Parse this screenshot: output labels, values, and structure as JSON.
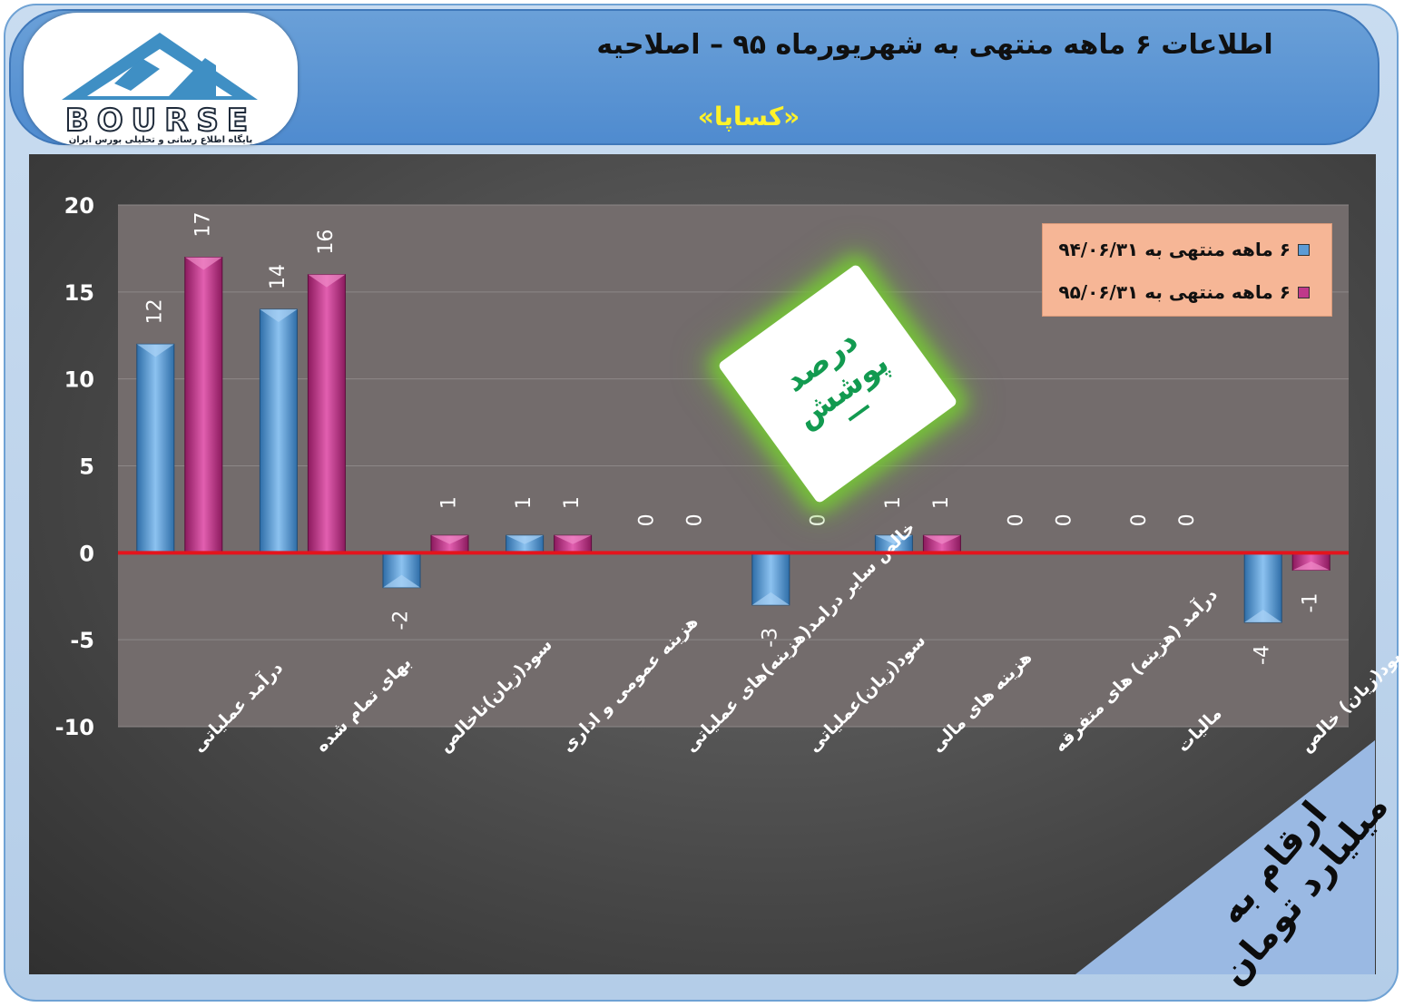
{
  "header": {
    "title": "اطلاعات ۶ ماهه منتهی به شهریورماه ۹۵ – اصلاحیه",
    "subtitle": "«کساپا»"
  },
  "logo": {
    "text": "BOURSE",
    "mark": "24",
    "sub": "پایگاه اطلاع رسانی و تحلیلی بورس ایران"
  },
  "coverage": {
    "label": "درصد پوشش",
    "value": "—"
  },
  "unit_note": "ارقام به میلیارد تومان",
  "colors": {
    "series1": "#5b9bd5",
    "series2": "#c0398a",
    "zero_line": "#e3141c"
  },
  "chart_data": {
    "type": "bar",
    "categories": [
      "درآمد عملیاتی",
      "بهای تمام شده",
      "سود(زیان)ناخالص",
      "هزینه عمومی و اداری",
      "خالص سایر درامد(هزینه)های عملیاتی",
      "سود(زیان)عملیاتی",
      "هزینه های مالی",
      "درآمد (هزینه) های متفرقه",
      "مالیات",
      "سود(زیان) خالص"
    ],
    "series": [
      {
        "name": "۶ ماهه منتهی به ۹۴/۰۶/۳۱",
        "values": [
          12,
          14,
          -2,
          1,
          0,
          -3,
          1,
          0,
          0,
          -4
        ]
      },
      {
        "name": "۶ ماهه منتهی به ۹۵/۰۶/۳۱",
        "values": [
          17,
          16,
          1,
          1,
          0,
          0,
          1,
          0,
          0,
          -1
        ]
      }
    ],
    "ylim": [
      -10,
      20
    ],
    "yticks": [
      "20",
      "15",
      "10",
      "5",
      "0",
      "-5",
      "-10"
    ],
    "legend": "top-right",
    "grid": true
  }
}
